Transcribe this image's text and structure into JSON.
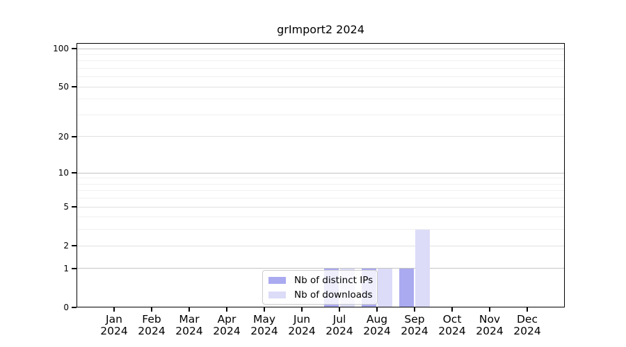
{
  "title": "grImport2 2024",
  "legend": {
    "items": [
      {
        "label": "Nb of distinct IPs",
        "color": "#aaaaf0"
      },
      {
        "label": "Nb of downloads",
        "color": "#dcdcf8"
      }
    ]
  },
  "chart_data": {
    "type": "bar",
    "title": "grImport2 2024",
    "categories": [
      "Jan",
      "Feb",
      "Mar",
      "Apr",
      "May",
      "Jun",
      "Jul",
      "Aug",
      "Sep",
      "Oct",
      "Nov",
      "Dec"
    ],
    "year": "2024",
    "series": [
      {
        "name": "Nb of distinct IPs",
        "color": "#aaaaf0",
        "values": [
          0,
          0,
          0,
          0,
          0,
          0,
          1,
          1,
          1,
          0,
          0,
          0
        ]
      },
      {
        "name": "Nb of downloads",
        "color": "#dcdcf8",
        "values": [
          0,
          0,
          0,
          0,
          0,
          0,
          1,
          1,
          3,
          0,
          0,
          0
        ]
      }
    ],
    "yscale": "log1p",
    "ylim": [
      0,
      110
    ],
    "yticks": [
      0,
      1,
      2,
      5,
      10,
      20,
      50,
      100
    ],
    "gridlines_dark": [
      1,
      10,
      100
    ],
    "gridlines_mid": [
      2,
      5,
      20,
      50
    ],
    "gridlines_minor": [
      3,
      4,
      6,
      7,
      8,
      9,
      30,
      40,
      60,
      70,
      80,
      90
    ],
    "grid": "horizontal",
    "legend_position": "inside lower center"
  }
}
